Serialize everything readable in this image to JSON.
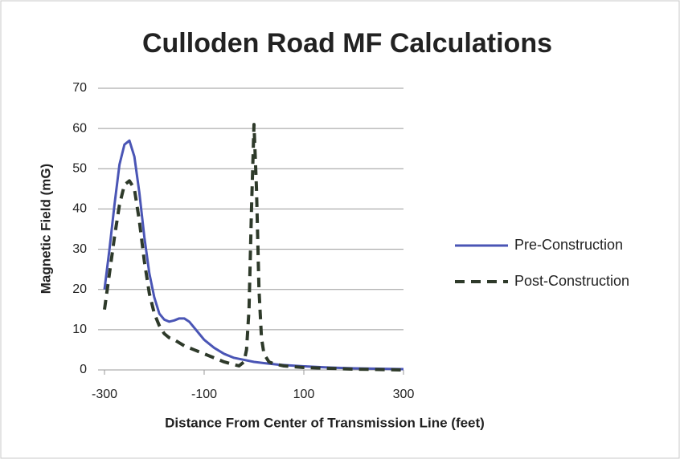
{
  "chart_data": {
    "type": "line",
    "title": "Culloden Road MF Calculations",
    "x_label": "Distance From Center of Transmission Line (feet)",
    "y_label": "Magnetic Field (mG)",
    "xlim": [
      -300,
      300
    ],
    "xticks": [
      -300,
      -100,
      100,
      300
    ],
    "ylim": [
      0,
      70
    ],
    "yticks": [
      0,
      10,
      20,
      30,
      40,
      50,
      60,
      70
    ],
    "grid": true,
    "legend": "right",
    "series": [
      {
        "name": "Pre-Construction",
        "color": "#4a55b5",
        "line_style": "solid",
        "x": [
          -300,
          -290,
          -280,
          -270,
          -260,
          -250,
          -240,
          -230,
          -220,
          -210,
          -200,
          -190,
          -180,
          -170,
          -160,
          -150,
          -140,
          -130,
          -120,
          -110,
          -100,
          -80,
          -60,
          -40,
          -20,
          0,
          20,
          50,
          100,
          150,
          200,
          250,
          300
        ],
        "values": [
          20,
          30,
          41,
          51,
          56,
          57,
          53,
          44,
          33,
          24,
          18,
          14,
          12.5,
          12,
          12.3,
          12.8,
          12.8,
          12,
          10.5,
          9,
          7.5,
          5.5,
          4,
          3,
          2.5,
          2,
          1.7,
          1.3,
          0.9,
          0.6,
          0.4,
          0.3,
          0.2
        ]
      },
      {
        "name": "Post-Construction",
        "color": "#2e3a2a",
        "line_style": "dashed",
        "x": [
          -300,
          -290,
          -280,
          -270,
          -260,
          -250,
          -240,
          -230,
          -220,
          -210,
          -200,
          -190,
          -180,
          -170,
          -160,
          -140,
          -120,
          -100,
          -80,
          -60,
          -40,
          -30,
          -20,
          -15,
          -10,
          -5,
          0,
          5,
          10,
          15,
          20,
          30,
          40,
          60,
          100,
          150,
          200,
          300
        ],
        "values": [
          15,
          24,
          33,
          41,
          46,
          47,
          45,
          37,
          27,
          19,
          14,
          11,
          9,
          8,
          7.5,
          6,
          5,
          4,
          3,
          2,
          1.3,
          1,
          2,
          5,
          15,
          40,
          61,
          45,
          20,
          8,
          4,
          2,
          1.5,
          1,
          0.6,
          0.4,
          0.2,
          0
        ]
      }
    ]
  }
}
